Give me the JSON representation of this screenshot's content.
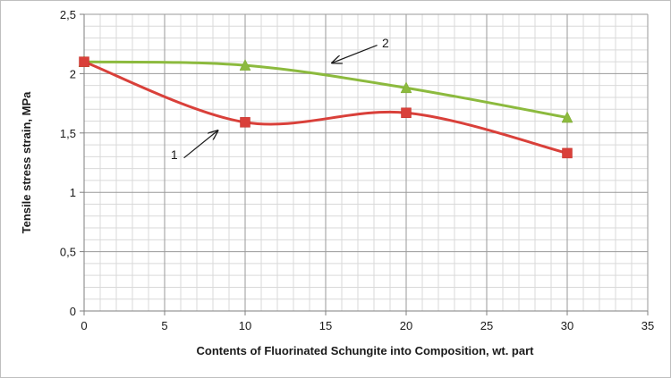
{
  "chart_data": {
    "type": "line",
    "title": "",
    "xlabel": "Contents of Fluorinated Schungite into Composition, wt. part",
    "ylabel": "Tensile stress strain, MPa",
    "xlim": [
      0,
      35
    ],
    "ylim": [
      0,
      2.5
    ],
    "grid": true,
    "minor_grid": true,
    "x_ticks": [
      "0",
      "5",
      "10",
      "15",
      "20",
      "25",
      "30",
      "35"
    ],
    "y_ticks": [
      "0",
      "0,5",
      "1",
      "1,5",
      "2",
      "2,5"
    ],
    "series": [
      {
        "label": "1",
        "color": "#d9403a",
        "marker": "square",
        "smooth": true,
        "points": [
          {
            "x": 0,
            "y": 2.1
          },
          {
            "x": 10,
            "y": 1.59
          },
          {
            "x": 20,
            "y": 1.67
          },
          {
            "x": 30,
            "y": 1.33
          }
        ]
      },
      {
        "label": "2",
        "color": "#8cba3e",
        "marker": "triangle",
        "smooth": true,
        "points": [
          {
            "x": 0,
            "y": 2.1
          },
          {
            "x": 10,
            "y": 2.07
          },
          {
            "x": 20,
            "y": 1.88
          },
          {
            "x": 30,
            "y": 1.63
          }
        ]
      }
    ],
    "annotations": [
      {
        "text": "1",
        "target_series": "1"
      },
      {
        "text": "2",
        "target_series": "2"
      }
    ]
  }
}
